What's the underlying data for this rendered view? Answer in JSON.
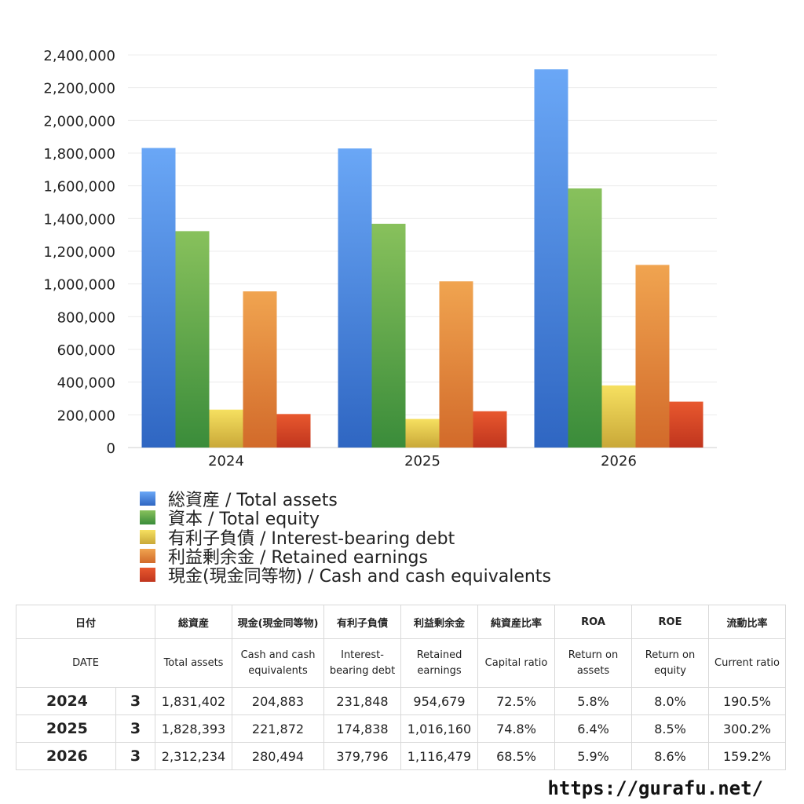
{
  "chart_data": {
    "type": "bar",
    "categories": [
      "2024",
      "2025",
      "2026"
    ],
    "ylim": [
      0,
      2400000
    ],
    "yticks": [
      "0",
      "200,000",
      "400,000",
      "600,000",
      "800,000",
      "1,000,000",
      "1,200,000",
      "1,400,000",
      "1,600,000",
      "1,800,000",
      "2,000,000",
      "2,200,000",
      "2,400,000"
    ],
    "grid": true,
    "legend_position": "bottom-left",
    "series": [
      {
        "name": "総資産 / Total assets",
        "values": [
          1831402,
          1828393,
          2312234
        ],
        "color_top": "#6aa7f6",
        "color_bottom": "#2f66c2"
      },
      {
        "name": "資本 / Total equity",
        "values": [
          1323000,
          1368000,
          1584000
        ],
        "color_top": "#88c15c",
        "color_bottom": "#3a8c3a"
      },
      {
        "name": "有利子負債 / Interest-bearing debt",
        "values": [
          231848,
          174838,
          379796
        ],
        "color_top": "#f6e060",
        "color_bottom": "#c9a838"
      },
      {
        "name": "利益剰余金 / Retained earnings",
        "values": [
          954679,
          1016160,
          1116479
        ],
        "color_top": "#f0a450",
        "color_bottom": "#d26a2a"
      },
      {
        "name": "現金(現金同等物)  /  Cash and cash equivalents",
        "values": [
          204883,
          221872,
          280494
        ],
        "color_top": "#e8582e",
        "color_bottom": "#c0351e"
      }
    ]
  },
  "table": {
    "headers_jp": [
      "日付",
      "",
      "総資産",
      "現金(現金同等物)",
      "有利子負債",
      "利益剰余金",
      "純資産比率",
      "ROA",
      "ROE",
      "流動比率"
    ],
    "headers_en": [
      "DATE",
      "",
      "Total assets",
      "Cash and cash equivalents",
      "Interest-bearing debt",
      "Retained earnings",
      "Capital ratio",
      "Return on assets",
      "Return on equity",
      "Current ratio"
    ],
    "rows": [
      [
        "2024",
        "3",
        "1,831,402",
        "204,883",
        "231,848",
        "954,679",
        "72.5%",
        "5.8%",
        "8.0%",
        "190.5%"
      ],
      [
        "2025",
        "3",
        "1,828,393",
        "221,872",
        "174,838",
        "1,016,160",
        "74.8%",
        "6.4%",
        "8.5%",
        "300.2%"
      ],
      [
        "2026",
        "3",
        "2,312,234",
        "280,494",
        "379,796",
        "1,116,479",
        "68.5%",
        "5.9%",
        "8.6%",
        "159.2%"
      ]
    ]
  },
  "footer": {
    "url": "https://gurafu.net/"
  }
}
